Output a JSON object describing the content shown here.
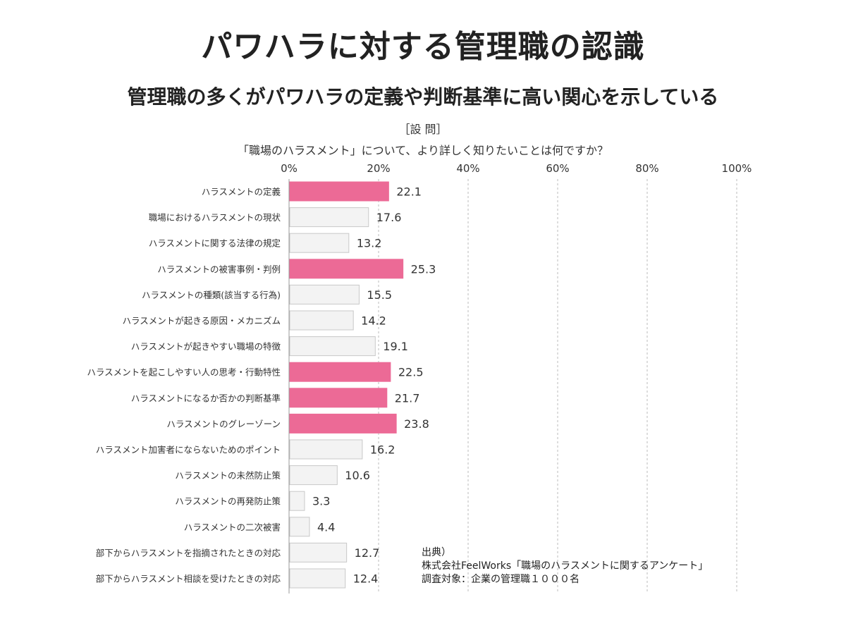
{
  "title": "パワハラに対する管理職の認識",
  "subtitle": "管理職の多くがパワハラの定義や判断基準に高い関心を示している",
  "question_label": "［設 問］",
  "question": "「職場のハラスメント」について、より詳しく知りたいことは何ですか？",
  "colors": {
    "highlight": "#ec6a96",
    "normal": "#f3f3f3",
    "normal_border": "#c8c8c8",
    "grid": "#bbbbbb"
  },
  "chart_data": {
    "type": "bar",
    "orientation": "horizontal",
    "xlim": [
      0,
      100
    ],
    "x_ticks": [
      "0%",
      "20%",
      "40%",
      "60%",
      "80%",
      "100%"
    ],
    "grid": true,
    "categories": [
      "ハラスメントの定義",
      "職場におけるハラスメントの現状",
      "ハラスメントに関する法律の規定",
      "ハラスメントの被害事例・判例",
      "ハラスメントの種類(該当する行為)",
      "ハラスメントが起きる原因・メカニズム",
      "ハラスメントが起きやすい職場の特徴",
      "ハラスメントを起こしやすい人の思考・行動特性",
      "ハラスメントになるか否かの判断基準",
      "ハラスメントのグレーゾーン",
      "ハラスメント加害者にならないためのポイント",
      "ハラスメントの未然防止策",
      "ハラスメントの再発防止策",
      "ハラスメントの二次被害",
      "部下からハラスメントを指摘されたときの対応",
      "部下からハラスメント相談を受けたときの対応"
    ],
    "values": [
      22.1,
      17.6,
      13.2,
      25.3,
      15.5,
      14.2,
      19.1,
      22.5,
      21.7,
      23.8,
      16.2,
      10.6,
      3.3,
      4.4,
      12.7,
      12.4
    ],
    "value_labels": [
      "22.1",
      "17.6",
      "13.2",
      "25.3",
      "15.5",
      "14.2",
      "19.1",
      "22.5",
      "21.7",
      "23.8",
      "16.2",
      "10.6",
      "3.3",
      "4.4",
      "12.7",
      "12.4"
    ],
    "highlighted": [
      true,
      false,
      false,
      true,
      false,
      false,
      false,
      true,
      true,
      true,
      false,
      false,
      false,
      false,
      false,
      false
    ]
  },
  "source": {
    "line1": "出典）",
    "line2": "株式会社FeelWorks「職場のハラスメントに関するアンケート」",
    "line3": "調査対象：企業の管理職１０００名"
  }
}
